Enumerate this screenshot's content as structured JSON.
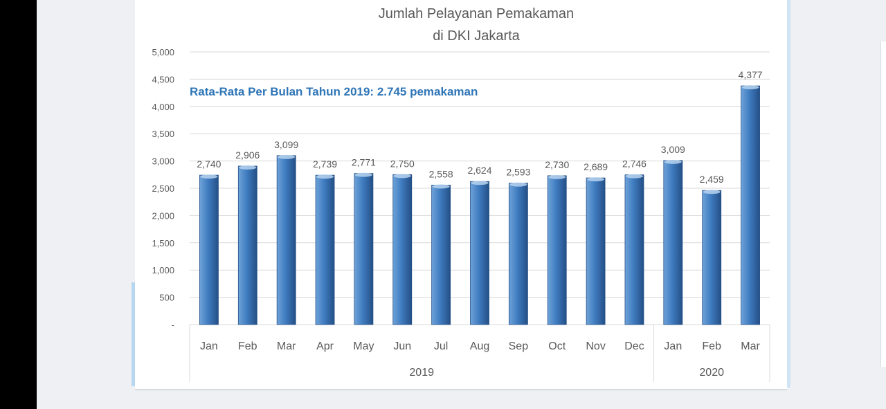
{
  "chart_data": {
    "type": "bar",
    "title_line1": "Jumlah Pelayanan Pemakaman",
    "title_line2": "di DKI Jakarta",
    "annotation": "Rata-Rata Per Bulan Tahun 2019: 2.745  pemakaman",
    "categories": [
      "Jan",
      "Feb",
      "Mar",
      "Apr",
      "May",
      "Jun",
      "Jul",
      "Aug",
      "Sep",
      "Oct",
      "Nov",
      "Dec",
      "Jan",
      "Feb",
      "Mar"
    ],
    "values": [
      2740,
      2906,
      3099,
      2739,
      2771,
      2750,
      2558,
      2624,
      2593,
      2730,
      2689,
      2746,
      3009,
      2459,
      4377
    ],
    "data_labels": [
      "2,740",
      "2,906",
      "3,099",
      "2,739",
      "2,771",
      "2,750",
      "2,558",
      "2,624",
      "2,593",
      "2,730",
      "2,689",
      "2,746",
      "3,009",
      "2,459",
      "4,377"
    ],
    "groups": [
      {
        "label": "2019",
        "start": 0,
        "end": 11
      },
      {
        "label": "2020",
        "start": 12,
        "end": 14
      }
    ],
    "ylim": [
      0,
      5000
    ],
    "yticks": [
      0,
      500,
      1000,
      1500,
      2000,
      2500,
      3000,
      3500,
      4000,
      4500,
      5000
    ],
    "ytick_labels": [
      "-",
      "500",
      "1,000",
      "1,500",
      "2,000",
      "2,500",
      "3,000",
      "3,500",
      "4,000",
      "4,500",
      "5,000"
    ],
    "grid": true,
    "colors": {
      "bar_light": "#6fa3d9",
      "bar_main": "#3f7cc0",
      "bar_dark": "#244f86",
      "title": "#595959",
      "annotation": "#2e75b6",
      "grid": "#d9d9d9",
      "axis_text": "#595959"
    }
  }
}
